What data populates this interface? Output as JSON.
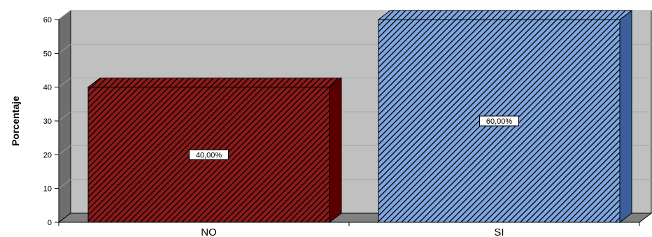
{
  "chart_data": {
    "type": "bar",
    "categories": [
      "NO",
      "SI"
    ],
    "values": [
      40,
      60
    ],
    "data_labels": [
      "40,00%",
      "60,00%"
    ],
    "ylabel": "Porcentaje",
    "xlabel": "",
    "ylim": [
      0,
      60
    ],
    "yticks": [
      0,
      10,
      20,
      30,
      40,
      50,
      60
    ],
    "grid": true,
    "three_d": true,
    "bar_colors": [
      "#8b1a1a",
      "#7ea6e0"
    ],
    "bar_side_colors": [
      "#5a0000",
      "#3a5f9a"
    ],
    "bar_hatch_colors": [
      "#000000",
      "#000000"
    ],
    "wall_color": "#c0c0c0",
    "floor_color": "#808080",
    "side_wall_color": "#6e6e6e"
  }
}
